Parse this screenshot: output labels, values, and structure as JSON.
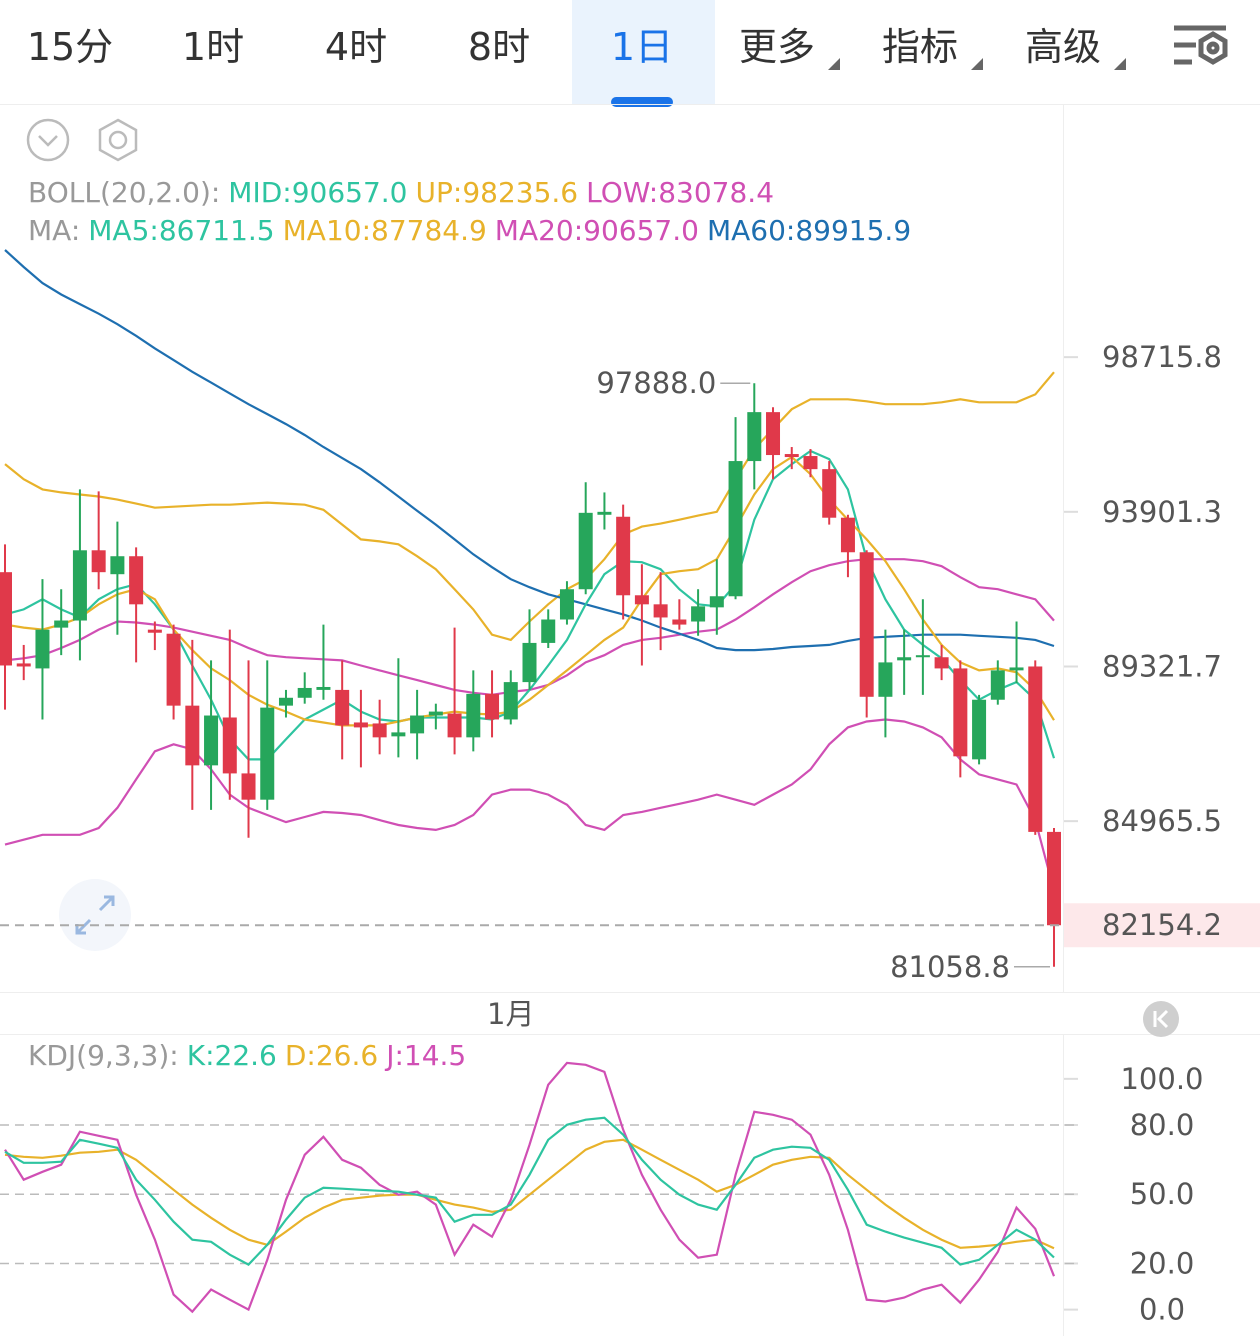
{
  "tabs": [
    "15分",
    "1时",
    "4时",
    "8时",
    "1日"
  ],
  "active_tab": 4,
  "menus": [
    "更多",
    "指标",
    "高级"
  ],
  "chart_data": [
    {
      "type": "candlestick",
      "log_scale": true,
      "ylim": [
        80400,
        107100
      ],
      "yticks": [
        98715.8,
        93901.3,
        89321.7,
        84965.5
      ],
      "up_color": "#26a65b",
      "down_color": "#e0394a",
      "categories": [
        null,
        null,
        null,
        null,
        null,
        null,
        null,
        null,
        null,
        null,
        null,
        null,
        null,
        null,
        null,
        null,
        null,
        null,
        null,
        null,
        null,
        null,
        null,
        null,
        null,
        null,
        null,
        "1月",
        null,
        null,
        null,
        null,
        null,
        null,
        null,
        null,
        null,
        null,
        null,
        null,
        null,
        null,
        null,
        null,
        null,
        null,
        null,
        null,
        null,
        null,
        null,
        null,
        null,
        null,
        null,
        null,
        null
      ],
      "open": [
        92087,
        89410,
        89266,
        90451,
        90659,
        92741,
        92027,
        92563,
        90392,
        90273,
        88198,
        86512,
        87861,
        86287,
        85557,
        88198,
        88423,
        88648,
        88648,
        87720,
        87692,
        87327,
        87411,
        87917,
        87973,
        87299,
        88535,
        87805,
        88872,
        90005,
        90689,
        91581,
        93812,
        93752,
        91402,
        91135,
        90689,
        90630,
        91046,
        91373,
        95455,
        96977,
        95672,
        95610,
        95206,
        93723,
        92682,
        88451,
        89499,
        89589,
        89589,
        89266,
        86680,
        88367,
        89210,
        89322,
        84671
      ],
      "high": [
        92920,
        89946,
        91879,
        91581,
        94585,
        94523,
        93604,
        92830,
        90630,
        90540,
        90094,
        89499,
        90392,
        89499,
        89499,
        88648,
        89153,
        90540,
        89499,
        88648,
        88367,
        89559,
        88648,
        88254,
        90451,
        89210,
        89210,
        89210,
        90987,
        90987,
        91819,
        94802,
        94492,
        94119,
        92325,
        92087,
        91284,
        91581,
        92474,
        96821,
        97888.0,
        97132,
        95889,
        95827,
        95455,
        93812,
        92741,
        90392,
        90392,
        91284,
        89946,
        89499,
        88507,
        89499,
        90630,
        89499,
        84778
      ],
      "low": [
        88086,
        88929,
        87805,
        89649,
        89499,
        91581,
        90243,
        89440,
        89797,
        87805,
        85276,
        85276,
        85557,
        84510,
        85276,
        87861,
        88254,
        88367,
        86680,
        86456,
        86821,
        86737,
        86680,
        87524,
        86821,
        86905,
        87299,
        87664,
        88648,
        89857,
        90540,
        91432,
        93366,
        90689,
        89351,
        89797,
        90392,
        90213,
        90243,
        91284,
        94585,
        94896,
        95206,
        94958,
        93514,
        91938,
        87861,
        87299,
        88507,
        88507,
        88929,
        86175,
        86540,
        88226,
        88844,
        84591,
        81058.8
      ],
      "close": [
        89351,
        89322,
        90392,
        90659,
        92741,
        92087,
        92563,
        91135,
        90302,
        88198,
        86512,
        87917,
        86287,
        85557,
        88142,
        88423,
        88704,
        88732,
        87636,
        87580,
        87299,
        87439,
        87917,
        88029,
        87299,
        88535,
        87805,
        88872,
        90005,
        90689,
        91581,
        93871,
        93901,
        91402,
        91135,
        90749,
        90540,
        91076,
        91373,
        95455,
        96977,
        95641,
        95579,
        95206,
        93723,
        92682,
        88451,
        89440,
        89589,
        89648,
        89266,
        86765,
        88367,
        89210,
        89294,
        84671,
        82154.2
      ],
      "lines": [
        {
          "color": "#d04fb4",
          "values": [
            89499,
            89559,
            89648,
            89857,
            90094,
            90392,
            90630,
            90600,
            90540,
            90451,
            90332,
            90213,
            90094,
            89857,
            89648,
            89589,
            89559,
            89529,
            89499,
            89351,
            89210,
            89069,
            88929,
            88788,
            88648,
            88564,
            88507,
            88592,
            88648,
            88788,
            89069,
            89440,
            89648,
            89946,
            90094,
            90154,
            90243,
            90332,
            90392,
            90689,
            91046,
            91432,
            91789,
            92117,
            92295,
            92414,
            92474,
            92474,
            92474,
            92414,
            92265,
            91938,
            91641,
            91581,
            91432,
            91284,
            90657.0
          ]
        },
        {
          "color": "#e8b22a",
          "values": [
            95362,
            94896,
            94585,
            94492,
            94430,
            94368,
            94274,
            94150,
            94026,
            94057,
            94088,
            94119,
            94119,
            94150,
            94181,
            94150,
            94119,
            93964,
            93514,
            93068,
            93009,
            92920,
            92563,
            92176,
            91581,
            90987,
            90243,
            90094,
            90630,
            91135,
            91581,
            91879,
            92474,
            93217,
            93455,
            93544,
            93663,
            93787,
            93901,
            94896,
            95827,
            96449,
            97070,
            97380,
            97380,
            97380,
            97318,
            97225,
            97225,
            97225,
            97287,
            97380,
            97287,
            97287,
            97287,
            97536,
            98235.6
          ]
        },
        {
          "color": "#d04fb4",
          "values": [
            84323,
            84457,
            84591,
            84591,
            84591,
            84778,
            85332,
            86119,
            86905,
            87102,
            86962,
            86400,
            85697,
            85332,
            85135,
            84939,
            85079,
            85219,
            85191,
            85135,
            84994,
            84859,
            84778,
            84725,
            84859,
            85135,
            85697,
            85838,
            85838,
            85697,
            85416,
            84859,
            84725,
            85135,
            85219,
            85332,
            85444,
            85557,
            85697,
            85557,
            85416,
            85697,
            85978,
            86400,
            87102,
            87580,
            87748,
            87805,
            87748,
            87580,
            87299,
            86680,
            86259,
            86119,
            85978,
            84994,
            83078.4
          ]
        },
        {
          "color": "#1e6fb0",
          "values": [
            102195,
            101636,
            101108,
            100735,
            100424,
            100114,
            99772,
            99399,
            98996,
            98623,
            98250,
            97908,
            97567,
            97225,
            96915,
            96604,
            96262,
            95889,
            95548,
            95206,
            94802,
            94367,
            93932,
            93514,
            93068,
            92622,
            92235,
            91879,
            91641,
            91432,
            91284,
            91135,
            90987,
            90838,
            90659,
            90451,
            90273,
            90094,
            89857,
            89797,
            89797,
            89827,
            89886,
            89916,
            89946,
            90065,
            90154,
            90184,
            90213,
            90243,
            90243,
            90243,
            90213,
            90184,
            90154,
            90094,
            89915.9
          ]
        },
        {
          "color": "#2ec4a0",
          "values": [
            90838,
            90987,
            91284,
            90987,
            90749,
            91284,
            91581,
            91730,
            91135,
            90392,
            89351,
            88367,
            87243,
            86680,
            86680,
            87243,
            87805,
            88086,
            88367,
            88029,
            87805,
            87748,
            87861,
            87861,
            87861,
            87861,
            87805,
            88029,
            88648,
            89351,
            90094,
            91135,
            92027,
            92414,
            92384,
            92176,
            91581,
            91135,
            91076,
            91730,
            93663,
            94896,
            95362,
            95765,
            95517,
            94585,
            92474,
            91284,
            90392,
            89946,
            89559,
            88929,
            88367,
            88648,
            88873,
            88367,
            86711.5
          ]
        },
        {
          "color": "#e8b22a",
          "values": [
            90540,
            90451,
            90392,
            90540,
            90749,
            91135,
            91432,
            91581,
            91284,
            90392,
            89797,
            89266,
            88929,
            88507,
            88226,
            88029,
            87805,
            87720,
            87636,
            87636,
            87636,
            87748,
            87861,
            87945,
            88029,
            87973,
            87945,
            88029,
            88367,
            88788,
            89210,
            89648,
            90094,
            90451,
            91284,
            92027,
            92117,
            92176,
            92474,
            93425,
            94430,
            95206,
            95579,
            95051,
            94274,
            93663,
            93068,
            92414,
            91581,
            90689,
            89946,
            89440,
            89210,
            89266,
            89153,
            88648,
            87784.9
          ]
        }
      ],
      "legend": [
        [
          {
            "text": "BOLL(20,2.0):",
            "color": "#999999"
          },
          {
            "text": "MID:90657.0",
            "color": "#2ec4a0"
          },
          {
            "text": "UP:98235.6",
            "color": "#e8b22a"
          },
          {
            "text": "LOW:83078.4",
            "color": "#d04fb4"
          }
        ],
        [
          {
            "text": "MA:",
            "color": "#999999"
          },
          {
            "text": "MA5:86711.5",
            "color": "#2ec4a0"
          },
          {
            "text": "MA10:87784.9",
            "color": "#e8b22a"
          },
          {
            "text": "MA20:90657.0",
            "color": "#d04fb4"
          },
          {
            "text": "MA60:89915.9",
            "color": "#1e6fb0"
          }
        ]
      ],
      "high_label": {
        "value": 97888.0,
        "label": "97888.0"
      },
      "low_label": 81058.8,
      "last_price": 82154.2
    },
    {
      "type": "line",
      "ylim": [
        -11,
        119
      ],
      "yticks": [
        {
          "value": 100,
          "label": "100.0"
        },
        {
          "value": 80,
          "label": "80.0"
        },
        {
          "value": 50,
          "label": "50.0"
        },
        {
          "value": 20,
          "label": "20.0"
        },
        {
          "value": 0,
          "label": "0.0"
        }
      ],
      "grid_lines": [
        80,
        50,
        20
      ],
      "lines": [
        {
          "color": "#e8b22a",
          "values": [
            67.1,
            66.2,
            65.8,
            66.7,
            68.0,
            68.4,
            69.3,
            64.9,
            58.4,
            51.9,
            45.5,
            39.8,
            34.6,
            30.3,
            28.1,
            33.8,
            39.8,
            44.2,
            47.6,
            48.5,
            49.4,
            49.8,
            49.8,
            47.6,
            45.5,
            44.2,
            42.4,
            43.3,
            49.8,
            56.3,
            62.8,
            69.3,
            72.7,
            73.6,
            69.3,
            64.9,
            60.6,
            56.3,
            51.1,
            54.1,
            58.4,
            62.8,
            64.9,
            66.2,
            65.8,
            58.4,
            51.9,
            45.5,
            39.8,
            34.6,
            30.3,
            26.8,
            27.3,
            28.1,
            29.4,
            30.3,
            26.6
          ]
        },
        {
          "color": "#d04fb4",
          "values": [
            69.3,
            56.3,
            59.7,
            62.8,
            77.1,
            75.3,
            73.6,
            49.8,
            30.3,
            6.5,
            -0.9,
            8.7,
            4.3,
            0.0,
            21.6,
            47.6,
            67.1,
            74.9,
            64.9,
            61.5,
            54.1,
            49.8,
            51.1,
            45.5,
            23.8,
            36.8,
            31.6,
            47.6,
            71.4,
            97.4,
            106.9,
            106.1,
            103.0,
            77.9,
            58.4,
            43.3,
            30.3,
            22.5,
            23.8,
            58.4,
            85.7,
            84.4,
            82.3,
            75.8,
            58.4,
            34.6,
            4.3,
            3.5,
            5.2,
            8.7,
            10.8,
            3.0,
            13.0,
            25.0,
            44.2,
            35.0,
            14.5
          ]
        },
        {
          "color": "#2ec4a0",
          "values": [
            68.4,
            63.6,
            63.6,
            64.1,
            73.6,
            71.9,
            70.1,
            56.3,
            47.6,
            38.1,
            30.3,
            29.4,
            23.8,
            19.5,
            28.1,
            39.0,
            48.5,
            52.8,
            52.4,
            51.9,
            51.5,
            51.1,
            49.8,
            48.5,
            38.1,
            41.1,
            41.1,
            45.5,
            58.4,
            73.6,
            80.1,
            82.3,
            83.1,
            75.8,
            64.9,
            56.3,
            49.8,
            45.5,
            43.3,
            54.1,
            65.8,
            69.3,
            70.6,
            70.1,
            64.9,
            51.9,
            36.8,
            33.8,
            31.2,
            29.0,
            26.8,
            19.5,
            21.6,
            28.1,
            34.6,
            30.3,
            22.6
          ]
        }
      ],
      "legend": [
        [
          {
            "text": "KDJ(9,3,3):",
            "color": "#999999"
          },
          {
            "text": "K:22.6",
            "color": "#2ec4a0"
          },
          {
            "text": "D:26.6",
            "color": "#e8b22a"
          },
          {
            "text": "J:14.5",
            "color": "#d04fb4"
          }
        ]
      ]
    }
  ]
}
